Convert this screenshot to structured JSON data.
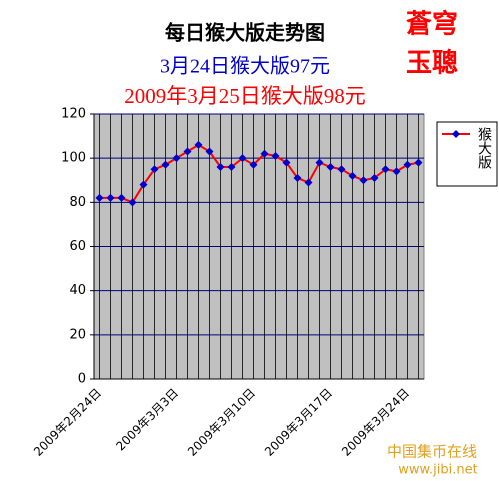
{
  "chart_data": {
    "type": "line",
    "title": "每日猴大版走势图",
    "subtitle": "3月24日猴大版97元",
    "subtitle2": "2009年3月25日猴大版98元",
    "brand": [
      "蒼穹",
      "玉聰"
    ],
    "watermark": [
      "中国集币在线",
      "www.jibi.net"
    ],
    "categories": [
      "2009年2月24日",
      null,
      null,
      null,
      null,
      null,
      null,
      "2009年3月3日",
      null,
      null,
      null,
      null,
      null,
      null,
      "2009年3月10日",
      null,
      null,
      null,
      null,
      null,
      null,
      "2009年3月17日",
      null,
      null,
      null,
      null,
      null,
      null,
      "2009年3月24日",
      null
    ],
    "series": [
      {
        "name": "猴大版",
        "color": "#ff0000",
        "marker_color": "#0000cc",
        "values": [
          82,
          82,
          82,
          80,
          88,
          95,
          97,
          100,
          103,
          106,
          103,
          96,
          96,
          100,
          97,
          102,
          101,
          98,
          91,
          89,
          98,
          96,
          95,
          92,
          90,
          91,
          95,
          94,
          97,
          98
        ]
      }
    ],
    "ylim": [
      0,
      120
    ],
    "yticks": [
      0,
      20,
      40,
      60,
      80,
      100,
      120
    ],
    "grid": true,
    "legend": "right"
  }
}
